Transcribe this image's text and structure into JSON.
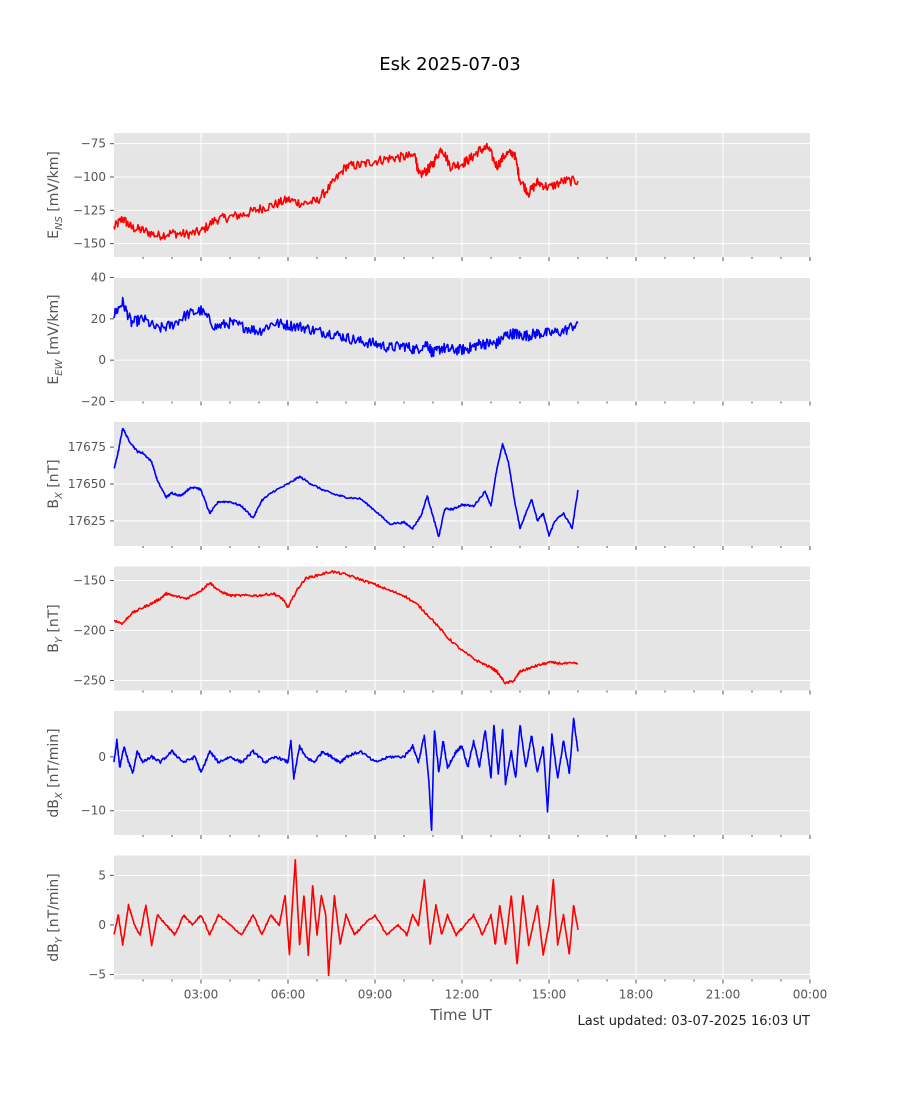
{
  "figure": {
    "title": "Esk 2025-07-03",
    "footer": "Last updated: 03-07-2025 16:03 UT"
  },
  "chart_data": {
    "type": "line",
    "title": "Esk 2025-07-03",
    "xlabel": "Time UT",
    "x_unit": "hours UT",
    "xlim": [
      0,
      24
    ],
    "x_tick_labels": [
      "03:00",
      "06:00",
      "09:00",
      "12:00",
      "15:00",
      "18:00",
      "21:00",
      "00:00"
    ],
    "background": "#e5e5e5",
    "grid": true,
    "panels": [
      {
        "id": "ens",
        "ylabel": "E",
        "ylabel_sub": "NS",
        "ylabel_unit": " [mV/km]",
        "color": "#ff0000",
        "ylim": [
          -160,
          -67
        ],
        "yticks": [
          -75,
          -100,
          -125,
          -150
        ],
        "series": {
          "x": [
            0,
            0.3,
            0.6,
            1.0,
            1.5,
            2.0,
            2.5,
            3.0,
            3.5,
            4.0,
            4.5,
            5.0,
            5.5,
            6.0,
            6.5,
            7.0,
            7.5,
            8.0,
            8.5,
            9.0,
            9.5,
            10.0,
            10.4,
            10.5,
            10.8,
            11.0,
            11.3,
            11.6,
            12.0,
            12.3,
            12.6,
            12.9,
            13.2,
            13.5,
            13.8,
            14.0,
            14.3,
            14.6,
            15.0,
            15.5,
            16.0
          ],
          "y": [
            -138,
            -131,
            -138,
            -140,
            -144,
            -142,
            -143,
            -141,
            -132,
            -130,
            -128,
            -124,
            -121,
            -117,
            -120,
            -118,
            -106,
            -92,
            -91,
            -88,
            -86,
            -85,
            -84,
            -99,
            -95,
            -90,
            -78,
            -92,
            -90,
            -86,
            -80,
            -78,
            -92,
            -83,
            -82,
            -102,
            -112,
            -104,
            -108,
            -103,
            -103
          ]
        }
      },
      {
        "id": "eew",
        "ylabel": "E",
        "ylabel_sub": "EW",
        "ylabel_unit": " [mV/km]",
        "color": "#0000ff",
        "ylim": [
          -20,
          40
        ],
        "yticks": [
          40,
          20,
          0,
          -20
        ],
        "series": {
          "x": [
            0,
            0.3,
            0.6,
            1.0,
            1.5,
            2.0,
            2.5,
            3.0,
            3.5,
            4.0,
            4.5,
            5.0,
            5.5,
            6.0,
            6.5,
            7.0,
            7.5,
            8.0,
            8.5,
            9.0,
            9.5,
            10.0,
            10.4,
            10.8,
            11.0,
            11.3,
            11.6,
            12.0,
            12.3,
            12.6,
            12.9,
            13.2,
            13.5,
            13.8,
            14.0,
            14.3,
            14.6,
            15.0,
            15.5,
            16.0
          ],
          "y": [
            22,
            28,
            18,
            20,
            15,
            17,
            22,
            24,
            16,
            18,
            16,
            14,
            18,
            17,
            16,
            14,
            13,
            11,
            9,
            8,
            6,
            7,
            5,
            8,
            3,
            6,
            5,
            5,
            6,
            8,
            8,
            8,
            12,
            13,
            12,
            12,
            13,
            13,
            14,
            18
          ]
        }
      },
      {
        "id": "bx",
        "ylabel": "B",
        "ylabel_sub": "X",
        "ylabel_unit": " [nT]",
        "color": "#0000ff",
        "ylim": [
          17608,
          17692
        ],
        "yticks": [
          17675,
          17650,
          17625
        ],
        "series": {
          "x": [
            0,
            0.15,
            0.3,
            0.5,
            0.8,
            1.0,
            1.3,
            1.5,
            1.8,
            2.0,
            2.3,
            2.6,
            2.8,
            3.0,
            3.3,
            3.6,
            4.0,
            4.4,
            4.8,
            5.1,
            5.5,
            6.0,
            6.4,
            6.8,
            7.2,
            7.6,
            8.0,
            8.5,
            9.0,
            9.5,
            10.0,
            10.3,
            10.6,
            10.8,
            11.0,
            11.2,
            11.4,
            11.7,
            12.0,
            12.4,
            12.8,
            13.0,
            13.2,
            13.4,
            13.6,
            13.8,
            14.0,
            14.2,
            14.4,
            14.6,
            14.8,
            15.0,
            15.2,
            15.5,
            15.8,
            16.0
          ],
          "y": [
            17660,
            17672,
            17688,
            17680,
            17672,
            17671,
            17665,
            17652,
            17641,
            17644,
            17642,
            17647,
            17648,
            17646,
            17630,
            17638,
            17638,
            17635,
            17627,
            17639,
            17645,
            17650,
            17655,
            17650,
            17646,
            17643,
            17641,
            17640,
            17632,
            17623,
            17624,
            17620,
            17629,
            17642,
            17628,
            17614,
            17633,
            17633,
            17636,
            17635,
            17645,
            17635,
            17660,
            17677,
            17665,
            17640,
            17620,
            17630,
            17640,
            17625,
            17630,
            17615,
            17625,
            17630,
            17620,
            17646
          ]
        }
      },
      {
        "id": "by",
        "ylabel": "B",
        "ylabel_sub": "Y",
        "ylabel_unit": " [nT]",
        "color": "#ff0000",
        "ylim": [
          -260,
          -136
        ],
        "yticks": [
          -150,
          -200,
          -250
        ],
        "series": {
          "x": [
            0,
            0.3,
            0.6,
            1.0,
            1.3,
            1.6,
            1.8,
            2.0,
            2.5,
            3.0,
            3.3,
            3.6,
            4.0,
            4.5,
            5.0,
            5.5,
            5.8,
            6.0,
            6.3,
            6.6,
            7.0,
            7.5,
            8.0,
            8.5,
            9.0,
            9.5,
            10.0,
            10.5,
            11.0,
            11.5,
            12.0,
            12.5,
            13.0,
            13.2,
            13.5,
            13.8,
            14.0,
            14.3,
            14.6,
            15.0,
            15.5,
            16.0
          ],
          "y": [
            -190,
            -193,
            -183,
            -177,
            -173,
            -168,
            -163,
            -165,
            -168,
            -160,
            -152,
            -160,
            -165,
            -165,
            -165,
            -163,
            -168,
            -177,
            -160,
            -148,
            -145,
            -141,
            -144,
            -149,
            -154,
            -160,
            -165,
            -175,
            -190,
            -207,
            -220,
            -230,
            -237,
            -241,
            -253,
            -250,
            -241,
            -238,
            -235,
            -232,
            -233,
            -233
          ]
        }
      },
      {
        "id": "dbx",
        "ylabel": "dB",
        "ylabel_sub": "X",
        "ylabel_unit": " [nT/min]",
        "color": "#0000ff",
        "ylim": [
          -14.5,
          8.5
        ],
        "yticks": [
          0,
          -10
        ],
        "series": {
          "x": [
            0,
            0.1,
            0.2,
            0.35,
            0.5,
            0.65,
            0.8,
            1.0,
            1.3,
            1.6,
            2.0,
            2.4,
            2.8,
            3.0,
            3.3,
            3.6,
            4.0,
            4.4,
            4.8,
            5.2,
            5.6,
            6.0,
            6.1,
            6.2,
            6.4,
            6.6,
            6.9,
            7.2,
            7.5,
            7.8,
            8.0,
            8.5,
            9.0,
            9.5,
            10.0,
            10.3,
            10.5,
            10.7,
            10.85,
            10.95,
            11.05,
            11.2,
            11.35,
            11.5,
            11.8,
            12.0,
            12.2,
            12.4,
            12.6,
            12.8,
            13.0,
            13.1,
            13.25,
            13.4,
            13.5,
            13.7,
            13.85,
            14.0,
            14.2,
            14.4,
            14.6,
            14.8,
            14.95,
            15.1,
            15.3,
            15.5,
            15.7,
            15.85,
            16.0
          ],
          "y": [
            -1,
            3,
            -2,
            2,
            -1,
            -3,
            1,
            -1,
            0,
            -1,
            1,
            -1,
            0,
            -3,
            1,
            -1,
            0,
            -1,
            1,
            -1,
            0,
            -1,
            3,
            -4,
            2,
            0,
            -1,
            1,
            0,
            -1,
            0,
            1,
            -1,
            0,
            0,
            2,
            -1,
            4,
            -4,
            -13.5,
            5,
            -3,
            3,
            -2,
            1,
            2,
            -2,
            3,
            -2,
            5,
            -4,
            6,
            -3,
            5,
            -5,
            1,
            -4,
            6,
            -2,
            4,
            -3,
            2,
            -10,
            4,
            -4,
            3,
            -3,
            7,
            1
          ]
        }
      },
      {
        "id": "dby",
        "ylabel": "dB",
        "ylabel_sub": "Y",
        "ylabel_unit": " [nT/min]",
        "color": "#ff0000",
        "ylim": [
          -5.5,
          7
        ],
        "yticks": [
          5,
          0,
          -5
        ],
        "series": {
          "x": [
            0,
            0.15,
            0.3,
            0.5,
            0.7,
            0.9,
            1.1,
            1.3,
            1.5,
            1.8,
            2.1,
            2.4,
            2.7,
            3.0,
            3.3,
            3.6,
            4.0,
            4.4,
            4.8,
            5.1,
            5.4,
            5.7,
            5.9,
            6.05,
            6.15,
            6.25,
            6.4,
            6.55,
            6.7,
            6.85,
            7.0,
            7.15,
            7.3,
            7.4,
            7.6,
            7.8,
            8.0,
            8.3,
            8.6,
            9.0,
            9.4,
            9.8,
            10.1,
            10.3,
            10.5,
            10.7,
            10.9,
            11.1,
            11.3,
            11.5,
            11.8,
            12.1,
            12.4,
            12.7,
            13.0,
            13.15,
            13.3,
            13.5,
            13.7,
            13.9,
            14.1,
            14.3,
            14.6,
            14.8,
            15.0,
            15.15,
            15.3,
            15.5,
            15.7,
            15.85,
            16.0
          ],
          "y": [
            -1,
            1,
            -2,
            2,
            0,
            -1,
            2,
            -2,
            1,
            0,
            -1,
            1,
            0,
            1,
            -1,
            1,
            0,
            -1,
            1,
            -1,
            1,
            0,
            3,
            -3,
            2,
            6.5,
            -2,
            3,
            -3,
            4,
            -1,
            3,
            1,
            -5,
            3,
            -2,
            1,
            -1,
            0,
            1,
            -1,
            0,
            -1,
            1,
            0,
            4.5,
            -2,
            2,
            -1,
            1,
            -1,
            0,
            1,
            -1,
            1,
            -2,
            2,
            -2,
            3,
            -4,
            3,
            -2,
            2,
            -3,
            0,
            4.5,
            -2,
            1,
            -3,
            2,
            -0.5
          ]
        }
      }
    ]
  }
}
